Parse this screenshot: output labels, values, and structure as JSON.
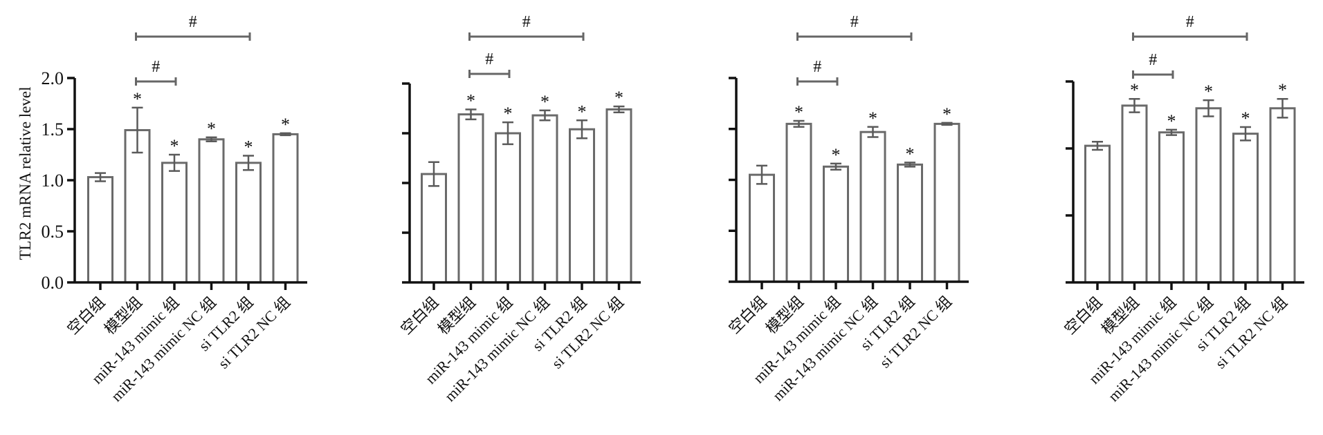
{
  "chart_data": [
    {
      "type": "bar",
      "ylabel": "TLR2 mRNA relative level",
      "ylim": [
        0,
        2.0
      ],
      "yticks": [
        "0.0",
        "0.5",
        "1.0",
        "1.5",
        "2.0"
      ],
      "show_tick_labels": true,
      "categories": [
        "空白组",
        "模型组",
        "miR-143 mimic 组",
        "miR-143 mimic NC 组",
        "si TLR2 组",
        "si TLR2 NC 组"
      ],
      "values": [
        1.03,
        1.49,
        1.17,
        1.4,
        1.17,
        1.45
      ],
      "errors": [
        0.04,
        0.22,
        0.08,
        0.02,
        0.07,
        0.01
      ],
      "significance": [
        "",
        "*",
        "*",
        "*",
        "*",
        "*"
      ],
      "brackets": [
        {
          "from": 1,
          "to": 2,
          "label": "#"
        },
        {
          "from": 1,
          "to": 4,
          "label": "#"
        }
      ]
    },
    {
      "type": "bar",
      "ylim": [
        0,
        2.0
      ],
      "yticks": [
        "0.0",
        "0.5",
        "1.0",
        "1.5",
        "2.0"
      ],
      "show_tick_labels": false,
      "categories": [
        "空白组",
        "模型组",
        "miR-143 mimic 组",
        "miR-143 mimic NC 组",
        "si TLR2 组",
        "si TLR2 NC 组"
      ],
      "values": [
        1.09,
        1.69,
        1.5,
        1.68,
        1.54,
        1.74
      ],
      "errors": [
        0.12,
        0.05,
        0.11,
        0.05,
        0.09,
        0.03
      ],
      "significance": [
        "",
        "*",
        "*",
        "*",
        "*",
        "*"
      ],
      "brackets": [
        {
          "from": 1,
          "to": 2,
          "label": "#"
        },
        {
          "from": 1,
          "to": 4,
          "label": "#"
        }
      ]
    },
    {
      "type": "bar",
      "ylim": [
        0,
        2.0
      ],
      "yticks": [
        "0.0",
        "0.5",
        "1.0",
        "1.5",
        "2.0"
      ],
      "show_tick_labels": false,
      "categories": [
        "空白组",
        "模型组",
        "miR-143 mimic 组",
        "miR-143 mimic NC 组",
        "si TLR2 组",
        "si TLR2 NC 组"
      ],
      "values": [
        1.05,
        1.55,
        1.13,
        1.47,
        1.15,
        1.55
      ],
      "errors": [
        0.09,
        0.03,
        0.03,
        0.05,
        0.02,
        0.01
      ],
      "significance": [
        "",
        "*",
        "*",
        "*",
        "*",
        "*"
      ],
      "brackets": [
        {
          "from": 1,
          "to": 2,
          "label": "#"
        },
        {
          "from": 1,
          "to": 4,
          "label": "#"
        }
      ]
    },
    {
      "type": "bar",
      "ylim": [
        0,
        1.5
      ],
      "yticks": [
        "0.0",
        "0.5",
        "1.0",
        "1.5"
      ],
      "show_tick_labels": false,
      "categories": [
        "空白组",
        "模型组",
        "miR-143 mimic 组",
        "miR-143 mimic NC 组",
        "si TLR2 组",
        "si TLR2 NC 组"
      ],
      "values": [
        1.02,
        1.32,
        1.12,
        1.3,
        1.11,
        1.3
      ],
      "errors": [
        0.03,
        0.05,
        0.02,
        0.06,
        0.05,
        0.07
      ],
      "significance": [
        "",
        "*",
        "*",
        "*",
        "*",
        "*"
      ],
      "brackets": [
        {
          "from": 1,
          "to": 2,
          "label": "#"
        },
        {
          "from": 1,
          "to": 4,
          "label": "#"
        }
      ]
    }
  ]
}
